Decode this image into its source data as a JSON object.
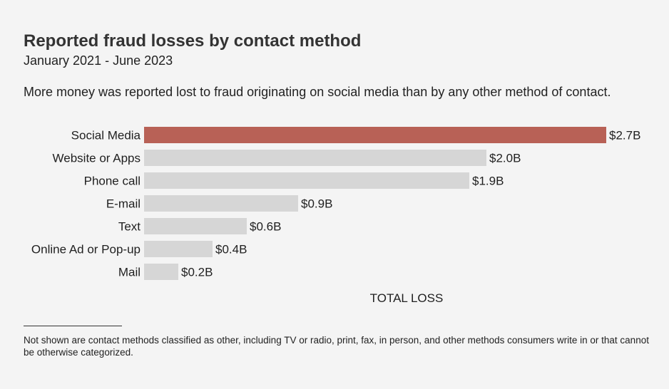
{
  "title": "Reported fraud losses by contact method",
  "subtitle": "January 2021 - June 2023",
  "description": "More money was reported lost to fraud originating on social media than by any other method of contact.",
  "footnote": "Not shown are contact methods classified as other, including TV or radio, print, fax, in person, and other methods consumers write in or that cannot be otherwise categorized.",
  "colors": {
    "highlight": "#b86156",
    "default": "#d6d6d6",
    "background": "#f4f4f4"
  },
  "chart_data": {
    "type": "bar",
    "orientation": "horizontal",
    "categories": [
      "Social Media",
      "Website or Apps",
      "Phone call",
      "E-mail",
      "Text",
      "Online Ad or Pop-up",
      "Mail"
    ],
    "values": [
      2.7,
      2.0,
      1.9,
      0.9,
      0.6,
      0.4,
      0.2
    ],
    "data_labels": [
      "$2.7B",
      "$2.0B",
      "$1.9B",
      "$0.9B",
      "$0.6B",
      "$0.4B",
      "$0.2B"
    ],
    "highlight": "Social Media",
    "xlabel": "TOTAL LOSS",
    "ylabel": "",
    "xlim": [
      0,
      2.7
    ],
    "grid": false,
    "legend": "none"
  }
}
